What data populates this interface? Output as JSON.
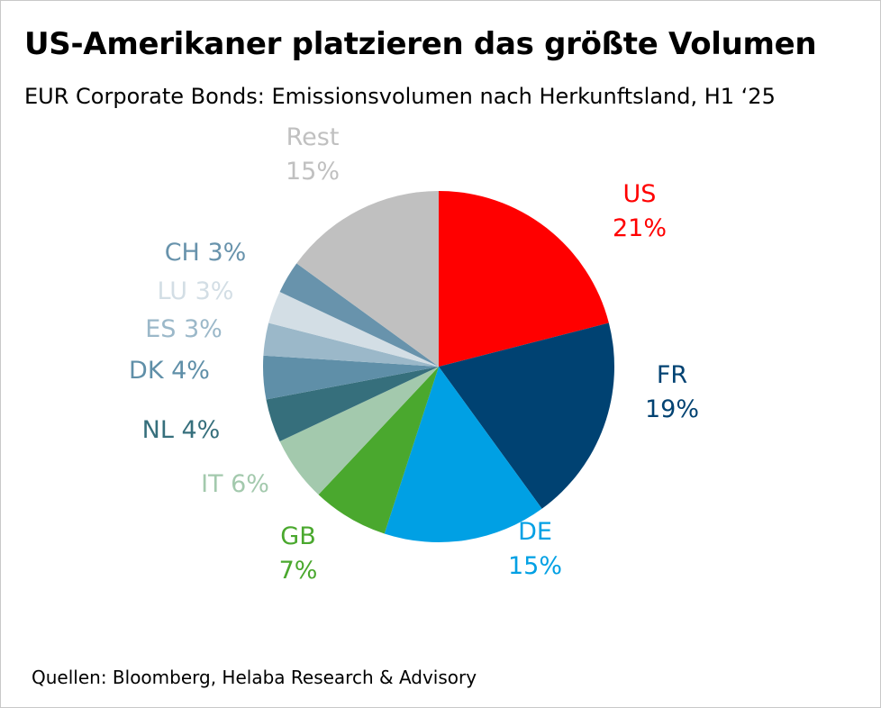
{
  "header": {
    "title": "US-Amerikaner platzieren das größte Volumen",
    "subtitle": "EUR Corporate Bonds: Emissionsvolumen nach Herkunftsland, H1 ‘25"
  },
  "footer": {
    "source": "Quellen: Bloomberg, Helaba Research & Advisory"
  },
  "chart_data": {
    "type": "pie",
    "title": "US-Amerikaner platzieren das größte Volumen",
    "subtitle": "EUR Corporate Bonds: Emissionsvolumen nach Herkunftsland, H1 ‘25",
    "unit": "%",
    "start": "12 o'clock, clockwise",
    "slices": [
      {
        "label": "US",
        "value": 21,
        "value_text": "21%",
        "color": "#ff0000"
      },
      {
        "label": "FR",
        "value": 19,
        "value_text": "19%",
        "color": "#004272"
      },
      {
        "label": "DE",
        "value": 15,
        "value_text": "15%",
        "color": "#00a0e4"
      },
      {
        "label": "GB",
        "value": 7,
        "value_text": "7%",
        "color": "#4aa82e"
      },
      {
        "label": "IT",
        "value": 6,
        "value_text": "6%",
        "color": "#a3c9ad"
      },
      {
        "label": "NL",
        "value": 4,
        "value_text": "4%",
        "color": "#366f7c"
      },
      {
        "label": "DK",
        "value": 4,
        "value_text": "4%",
        "color": "#5f8fa8"
      },
      {
        "label": "ES",
        "value": 3,
        "value_text": "3%",
        "color": "#9bb8c9"
      },
      {
        "label": "LU",
        "value": 3,
        "value_text": "3%",
        "color": "#d3dee5"
      },
      {
        "label": "CH",
        "value": 3,
        "value_text": "3%",
        "color": "#6893ac"
      },
      {
        "label": "Rest",
        "value": 15,
        "value_text": "15%",
        "color": "#c0c0c0"
      }
    ]
  }
}
